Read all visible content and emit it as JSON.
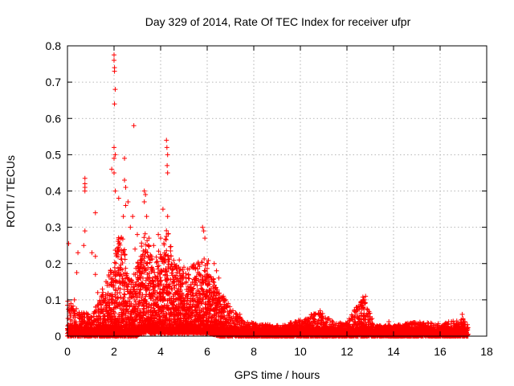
{
  "chart_data": {
    "type": "scatter",
    "title": "Day 329 of 2014, Rate Of TEC Index for receiver ufpr",
    "xlabel": "GPS time / hours",
    "ylabel": "ROTI / TECUs",
    "xlim": [
      0,
      18
    ],
    "ylim": [
      0,
      0.8
    ],
    "xticks": [
      "0",
      "2",
      "4",
      "6",
      "8",
      "10",
      "12",
      "14",
      "16",
      "18"
    ],
    "yticks": [
      "0",
      "0.1",
      "0.2",
      "0.3",
      "0.4",
      "0.5",
      "0.6",
      "0.7",
      "0.8"
    ],
    "grid": true,
    "marker": "plus",
    "color": "#ff0000",
    "series": [
      {
        "name": "ROTI",
        "envelope": [
          {
            "x": 0.0,
            "low": 0.0,
            "high": 0.1
          },
          {
            "x": 0.5,
            "low": 0.0,
            "high": 0.07
          },
          {
            "x": 1.0,
            "low": 0.0,
            "high": 0.06
          },
          {
            "x": 1.5,
            "low": 0.0,
            "high": 0.12
          },
          {
            "x": 1.9,
            "low": 0.0,
            "high": 0.2
          },
          {
            "x": 2.3,
            "low": 0.0,
            "high": 0.3
          },
          {
            "x": 2.7,
            "low": 0.0,
            "high": 0.15
          },
          {
            "x": 3.0,
            "low": 0.0,
            "high": 0.2
          },
          {
            "x": 3.3,
            "low": 0.02,
            "high": 0.3
          },
          {
            "x": 3.7,
            "low": 0.02,
            "high": 0.2
          },
          {
            "x": 4.0,
            "low": 0.02,
            "high": 0.25
          },
          {
            "x": 4.3,
            "low": 0.01,
            "high": 0.3
          },
          {
            "x": 4.6,
            "low": 0.01,
            "high": 0.2
          },
          {
            "x": 5.0,
            "low": 0.01,
            "high": 0.18
          },
          {
            "x": 5.5,
            "low": 0.01,
            "high": 0.2
          },
          {
            "x": 6.0,
            "low": 0.01,
            "high": 0.22
          },
          {
            "x": 6.5,
            "low": 0.0,
            "high": 0.12
          },
          {
            "x": 7.0,
            "low": 0.0,
            "high": 0.08
          },
          {
            "x": 7.5,
            "low": 0.0,
            "high": 0.05
          },
          {
            "x": 8.0,
            "low": 0.0,
            "high": 0.035
          },
          {
            "x": 9.0,
            "low": 0.0,
            "high": 0.03
          },
          {
            "x": 10.0,
            "low": 0.0,
            "high": 0.045
          },
          {
            "x": 10.8,
            "low": 0.0,
            "high": 0.07
          },
          {
            "x": 11.5,
            "low": 0.0,
            "high": 0.035
          },
          {
            "x": 12.0,
            "low": 0.0,
            "high": 0.04
          },
          {
            "x": 12.7,
            "low": 0.0,
            "high": 0.11
          },
          {
            "x": 13.2,
            "low": 0.0,
            "high": 0.03
          },
          {
            "x": 14.0,
            "low": 0.0,
            "high": 0.03
          },
          {
            "x": 15.0,
            "low": 0.0,
            "high": 0.04
          },
          {
            "x": 16.0,
            "low": 0.0,
            "high": 0.035
          },
          {
            "x": 17.0,
            "low": 0.0,
            "high": 0.05
          },
          {
            "x": 17.2,
            "low": 0.0,
            "high": 0.03
          }
        ],
        "outliers": [
          {
            "x": 2.0,
            "y": 0.775
          },
          {
            "x": 2.0,
            "y": 0.76
          },
          {
            "x": 2.02,
            "y": 0.74
          },
          {
            "x": 2.02,
            "y": 0.73
          },
          {
            "x": 2.05,
            "y": 0.68
          },
          {
            "x": 2.02,
            "y": 0.64
          },
          {
            "x": 2.85,
            "y": 0.58
          },
          {
            "x": 4.25,
            "y": 0.54
          },
          {
            "x": 4.27,
            "y": 0.52
          },
          {
            "x": 2.0,
            "y": 0.52
          },
          {
            "x": 2.05,
            "y": 0.5
          },
          {
            "x": 2.0,
            "y": 0.49
          },
          {
            "x": 2.45,
            "y": 0.49
          },
          {
            "x": 4.3,
            "y": 0.5
          },
          {
            "x": 4.28,
            "y": 0.47
          },
          {
            "x": 4.3,
            "y": 0.45
          },
          {
            "x": 1.9,
            "y": 0.46
          },
          {
            "x": 2.0,
            "y": 0.45
          },
          {
            "x": 0.75,
            "y": 0.435
          },
          {
            "x": 0.75,
            "y": 0.42
          },
          {
            "x": 0.75,
            "y": 0.41
          },
          {
            "x": 0.75,
            "y": 0.4
          },
          {
            "x": 2.45,
            "y": 0.43
          },
          {
            "x": 2.5,
            "y": 0.41
          },
          {
            "x": 3.3,
            "y": 0.4
          },
          {
            "x": 3.35,
            "y": 0.39
          },
          {
            "x": 3.3,
            "y": 0.37
          },
          {
            "x": 2.05,
            "y": 0.4
          },
          {
            "x": 2.2,
            "y": 0.38
          },
          {
            "x": 2.6,
            "y": 0.37
          },
          {
            "x": 2.5,
            "y": 0.36
          },
          {
            "x": 4.1,
            "y": 0.35
          },
          {
            "x": 4.3,
            "y": 0.33
          },
          {
            "x": 1.2,
            "y": 0.34
          },
          {
            "x": 2.4,
            "y": 0.33
          },
          {
            "x": 2.8,
            "y": 0.33
          },
          {
            "x": 3.4,
            "y": 0.33
          },
          {
            "x": 5.8,
            "y": 0.3
          },
          {
            "x": 5.85,
            "y": 0.29
          },
          {
            "x": 5.9,
            "y": 0.27
          },
          {
            "x": 0.75,
            "y": 0.29
          },
          {
            "x": 0.7,
            "y": 0.25
          },
          {
            "x": 0.05,
            "y": 0.255
          },
          {
            "x": 1.05,
            "y": 0.23
          },
          {
            "x": 1.2,
            "y": 0.22
          },
          {
            "x": 0.45,
            "y": 0.23
          },
          {
            "x": 0.4,
            "y": 0.175
          },
          {
            "x": 1.2,
            "y": 0.17
          },
          {
            "x": 3.0,
            "y": 0.28
          },
          {
            "x": 3.5,
            "y": 0.27
          },
          {
            "x": 3.7,
            "y": 0.25
          },
          {
            "x": 3.9,
            "y": 0.28
          },
          {
            "x": 4.0,
            "y": 0.27
          },
          {
            "x": 5.6,
            "y": 0.2
          },
          {
            "x": 5.5,
            "y": 0.19
          },
          {
            "x": 4.8,
            "y": 0.21
          },
          {
            "x": 5.2,
            "y": 0.17
          },
          {
            "x": 5.0,
            "y": 0.19
          },
          {
            "x": 4.2,
            "y": 0.22
          },
          {
            "x": 3.6,
            "y": 0.22
          },
          {
            "x": 2.9,
            "y": 0.24
          },
          {
            "x": 2.7,
            "y": 0.3
          },
          {
            "x": 1.3,
            "y": 0.12
          },
          {
            "x": 1.9,
            "y": 0.11
          },
          {
            "x": 1.5,
            "y": 0.13
          },
          {
            "x": 1.7,
            "y": 0.09
          },
          {
            "x": 0.15,
            "y": 0.09
          },
          {
            "x": 0.3,
            "y": 0.1
          },
          {
            "x": 0.5,
            "y": 0.065
          },
          {
            "x": 6.3,
            "y": 0.2
          },
          {
            "x": 6.4,
            "y": 0.18
          },
          {
            "x": 6.5,
            "y": 0.16
          },
          {
            "x": 6.7,
            "y": 0.11
          },
          {
            "x": 6.8,
            "y": 0.1
          },
          {
            "x": 6.9,
            "y": 0.09
          },
          {
            "x": 7.1,
            "y": 0.07
          },
          {
            "x": 7.4,
            "y": 0.06
          },
          {
            "x": 10.85,
            "y": 0.07
          },
          {
            "x": 12.8,
            "y": 0.11
          },
          {
            "x": 12.75,
            "y": 0.1
          },
          {
            "x": 12.7,
            "y": 0.08
          },
          {
            "x": 16.95,
            "y": 0.06
          },
          {
            "x": 10.2,
            "y": 0.045
          },
          {
            "x": 13.8,
            "y": 0.04
          }
        ]
      }
    ]
  }
}
